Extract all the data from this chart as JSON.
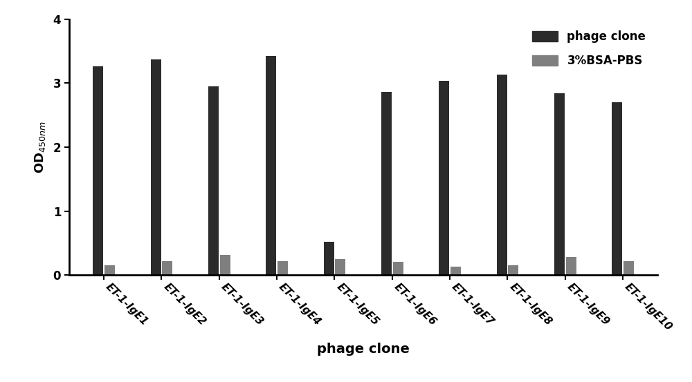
{
  "categories": [
    "ET-1-IgE1",
    "ET-1-IgE2",
    "ET-1-IgE3",
    "ET-1-IgE4",
    "ET-1-IgE5",
    "ET-1-IgE6",
    "ET-1-IgE7",
    "ET-1-IgE8",
    "ET-1-IgE9",
    "ET-1-IgE10"
  ],
  "phage_clone_values": [
    3.26,
    3.37,
    2.95,
    3.42,
    0.52,
    2.86,
    3.04,
    3.13,
    2.84,
    2.7
  ],
  "bsa_pbs_values": [
    0.15,
    0.22,
    0.32,
    0.22,
    0.25,
    0.21,
    0.13,
    0.15,
    0.28,
    0.22
  ],
  "phage_clone_color": "#2b2b2b",
  "bsa_pbs_color": "#7f7f7f",
  "xlabel": "phage clone",
  "ylim": [
    0,
    4
  ],
  "yticks": [
    0,
    1,
    2,
    3,
    4
  ],
  "bar_width": 0.18,
  "bar_gap": 0.02,
  "legend_labels": [
    "phage clone",
    "3%BSA-PBS"
  ],
  "background_color": "#ffffff",
  "xlabel_fontsize": 14,
  "ylabel_fontsize": 13,
  "tick_fontsize": 11,
  "legend_fontsize": 12,
  "axis_linewidth": 2.0
}
